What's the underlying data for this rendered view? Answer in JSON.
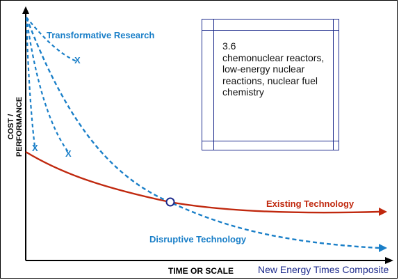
{
  "labels": {
    "transformative": "Transformative Research",
    "existing": "Existing Technology",
    "disruptive": "Disruptive Technology",
    "y_axis": "COST / PERFORMANCE",
    "x_axis": "TIME OR SCALE",
    "credit": "New Energy Times Composite",
    "x_marks": [
      "X",
      "X",
      "X"
    ]
  },
  "note": {
    "number": "3.6",
    "text": "chemonuclear reactors, low-energy nuclear reactions, nuclear fuel chemistry"
  },
  "colors": {
    "blue": "#1a7fc8",
    "red": "#c0280e",
    "border": "#1c2a8c",
    "axis": "#000000"
  }
}
